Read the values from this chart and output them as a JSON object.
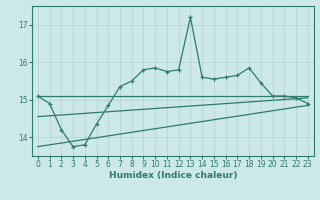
{
  "xlabel": "Humidex (Indice chaleur)",
  "ylabel": "",
  "bg_color": "#cce8e8",
  "line_color": "#2d7b6e",
  "grid_color": "#b8d4d4",
  "xlim": [
    -0.5,
    23.5
  ],
  "ylim": [
    13.5,
    17.5
  ],
  "yticks": [
    14,
    15,
    16,
    17
  ],
  "xticks": [
    0,
    1,
    2,
    3,
    4,
    5,
    6,
    7,
    8,
    9,
    10,
    11,
    12,
    13,
    14,
    15,
    16,
    17,
    18,
    19,
    20,
    21,
    22,
    23
  ],
  "main_x": [
    0,
    1,
    2,
    3,
    4,
    5,
    6,
    7,
    8,
    9,
    10,
    11,
    12,
    13,
    14,
    15,
    16,
    17,
    18,
    19,
    20,
    21,
    22,
    23
  ],
  "main_y": [
    15.1,
    14.9,
    14.2,
    13.75,
    13.8,
    14.35,
    14.85,
    15.35,
    15.5,
    15.8,
    15.85,
    15.75,
    15.8,
    17.2,
    15.6,
    15.55,
    15.6,
    15.65,
    15.85,
    15.45,
    15.1,
    15.1,
    15.05,
    14.9
  ],
  "upper_line_x": [
    0,
    23
  ],
  "upper_line_y": [
    15.1,
    15.1
  ],
  "mid_line_x": [
    0,
    23
  ],
  "mid_line_y": [
    14.55,
    15.05
  ],
  "lower_line_x": [
    0,
    23
  ],
  "lower_line_y": [
    13.75,
    14.85
  ]
}
